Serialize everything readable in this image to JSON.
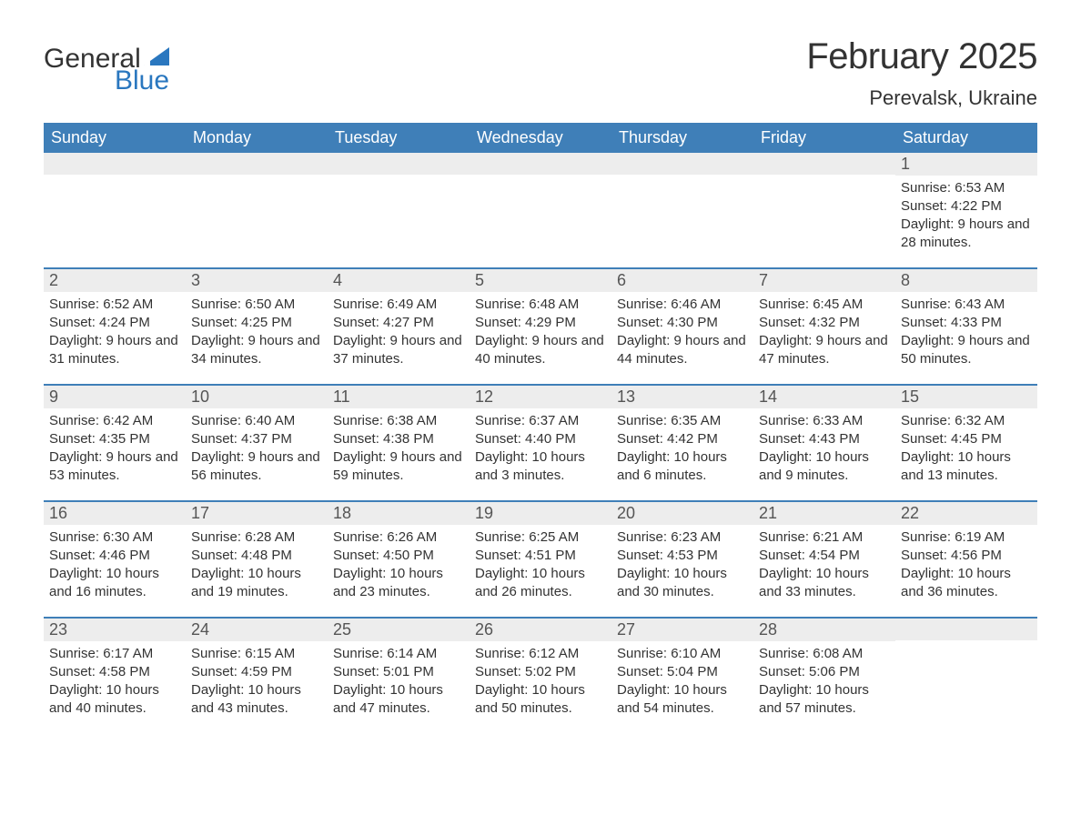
{
  "logo": {
    "text_general": "General",
    "text_blue": "Blue",
    "sail_color": "#2a77bf"
  },
  "header": {
    "month_title": "February 2025",
    "location": "Perevalsk, Ukraine"
  },
  "colors": {
    "header_bar": "#3f7fb8",
    "daynum_band": "#ededed",
    "separator": "#3f7fb8",
    "text": "#333333",
    "blue": "#2a77bf"
  },
  "days_of_week": [
    "Sunday",
    "Monday",
    "Tuesday",
    "Wednesday",
    "Thursday",
    "Friday",
    "Saturday"
  ],
  "weeks": [
    [
      {
        "num": "",
        "sunrise": "",
        "sunset": "",
        "daylight": ""
      },
      {
        "num": "",
        "sunrise": "",
        "sunset": "",
        "daylight": ""
      },
      {
        "num": "",
        "sunrise": "",
        "sunset": "",
        "daylight": ""
      },
      {
        "num": "",
        "sunrise": "",
        "sunset": "",
        "daylight": ""
      },
      {
        "num": "",
        "sunrise": "",
        "sunset": "",
        "daylight": ""
      },
      {
        "num": "",
        "sunrise": "",
        "sunset": "",
        "daylight": ""
      },
      {
        "num": "1",
        "sunrise": "Sunrise: 6:53 AM",
        "sunset": "Sunset: 4:22 PM",
        "daylight": "Daylight: 9 hours and 28 minutes."
      }
    ],
    [
      {
        "num": "2",
        "sunrise": "Sunrise: 6:52 AM",
        "sunset": "Sunset: 4:24 PM",
        "daylight": "Daylight: 9 hours and 31 minutes."
      },
      {
        "num": "3",
        "sunrise": "Sunrise: 6:50 AM",
        "sunset": "Sunset: 4:25 PM",
        "daylight": "Daylight: 9 hours and 34 minutes."
      },
      {
        "num": "4",
        "sunrise": "Sunrise: 6:49 AM",
        "sunset": "Sunset: 4:27 PM",
        "daylight": "Daylight: 9 hours and 37 minutes."
      },
      {
        "num": "5",
        "sunrise": "Sunrise: 6:48 AM",
        "sunset": "Sunset: 4:29 PM",
        "daylight": "Daylight: 9 hours and 40 minutes."
      },
      {
        "num": "6",
        "sunrise": "Sunrise: 6:46 AM",
        "sunset": "Sunset: 4:30 PM",
        "daylight": "Daylight: 9 hours and 44 minutes."
      },
      {
        "num": "7",
        "sunrise": "Sunrise: 6:45 AM",
        "sunset": "Sunset: 4:32 PM",
        "daylight": "Daylight: 9 hours and 47 minutes."
      },
      {
        "num": "8",
        "sunrise": "Sunrise: 6:43 AM",
        "sunset": "Sunset: 4:33 PM",
        "daylight": "Daylight: 9 hours and 50 minutes."
      }
    ],
    [
      {
        "num": "9",
        "sunrise": "Sunrise: 6:42 AM",
        "sunset": "Sunset: 4:35 PM",
        "daylight": "Daylight: 9 hours and 53 minutes."
      },
      {
        "num": "10",
        "sunrise": "Sunrise: 6:40 AM",
        "sunset": "Sunset: 4:37 PM",
        "daylight": "Daylight: 9 hours and 56 minutes."
      },
      {
        "num": "11",
        "sunrise": "Sunrise: 6:38 AM",
        "sunset": "Sunset: 4:38 PM",
        "daylight": "Daylight: 9 hours and 59 minutes."
      },
      {
        "num": "12",
        "sunrise": "Sunrise: 6:37 AM",
        "sunset": "Sunset: 4:40 PM",
        "daylight": "Daylight: 10 hours and 3 minutes."
      },
      {
        "num": "13",
        "sunrise": "Sunrise: 6:35 AM",
        "sunset": "Sunset: 4:42 PM",
        "daylight": "Daylight: 10 hours and 6 minutes."
      },
      {
        "num": "14",
        "sunrise": "Sunrise: 6:33 AM",
        "sunset": "Sunset: 4:43 PM",
        "daylight": "Daylight: 10 hours and 9 minutes."
      },
      {
        "num": "15",
        "sunrise": "Sunrise: 6:32 AM",
        "sunset": "Sunset: 4:45 PM",
        "daylight": "Daylight: 10 hours and 13 minutes."
      }
    ],
    [
      {
        "num": "16",
        "sunrise": "Sunrise: 6:30 AM",
        "sunset": "Sunset: 4:46 PM",
        "daylight": "Daylight: 10 hours and 16 minutes."
      },
      {
        "num": "17",
        "sunrise": "Sunrise: 6:28 AM",
        "sunset": "Sunset: 4:48 PM",
        "daylight": "Daylight: 10 hours and 19 minutes."
      },
      {
        "num": "18",
        "sunrise": "Sunrise: 6:26 AM",
        "sunset": "Sunset: 4:50 PM",
        "daylight": "Daylight: 10 hours and 23 minutes."
      },
      {
        "num": "19",
        "sunrise": "Sunrise: 6:25 AM",
        "sunset": "Sunset: 4:51 PM",
        "daylight": "Daylight: 10 hours and 26 minutes."
      },
      {
        "num": "20",
        "sunrise": "Sunrise: 6:23 AM",
        "sunset": "Sunset: 4:53 PM",
        "daylight": "Daylight: 10 hours and 30 minutes."
      },
      {
        "num": "21",
        "sunrise": "Sunrise: 6:21 AM",
        "sunset": "Sunset: 4:54 PM",
        "daylight": "Daylight: 10 hours and 33 minutes."
      },
      {
        "num": "22",
        "sunrise": "Sunrise: 6:19 AM",
        "sunset": "Sunset: 4:56 PM",
        "daylight": "Daylight: 10 hours and 36 minutes."
      }
    ],
    [
      {
        "num": "23",
        "sunrise": "Sunrise: 6:17 AM",
        "sunset": "Sunset: 4:58 PM",
        "daylight": "Daylight: 10 hours and 40 minutes."
      },
      {
        "num": "24",
        "sunrise": "Sunrise: 6:15 AM",
        "sunset": "Sunset: 4:59 PM",
        "daylight": "Daylight: 10 hours and 43 minutes."
      },
      {
        "num": "25",
        "sunrise": "Sunrise: 6:14 AM",
        "sunset": "Sunset: 5:01 PM",
        "daylight": "Daylight: 10 hours and 47 minutes."
      },
      {
        "num": "26",
        "sunrise": "Sunrise: 6:12 AM",
        "sunset": "Sunset: 5:02 PM",
        "daylight": "Daylight: 10 hours and 50 minutes."
      },
      {
        "num": "27",
        "sunrise": "Sunrise: 6:10 AM",
        "sunset": "Sunset: 5:04 PM",
        "daylight": "Daylight: 10 hours and 54 minutes."
      },
      {
        "num": "28",
        "sunrise": "Sunrise: 6:08 AM",
        "sunset": "Sunset: 5:06 PM",
        "daylight": "Daylight: 10 hours and 57 minutes."
      },
      {
        "num": "",
        "sunrise": "",
        "sunset": "",
        "daylight": ""
      }
    ]
  ]
}
